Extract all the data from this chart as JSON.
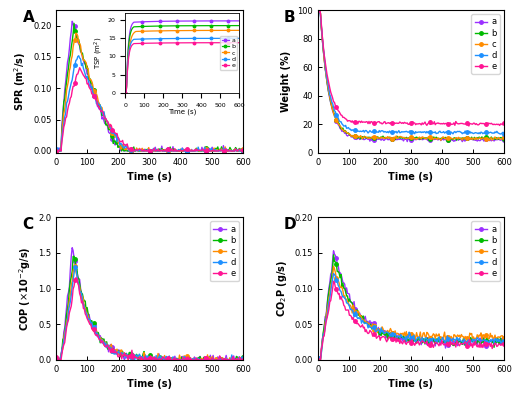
{
  "colors": {
    "a": "#9B30FF",
    "b": "#00BB00",
    "c": "#FF8C00",
    "d": "#1E90FF",
    "e": "#FF1493"
  },
  "labels": [
    "a",
    "b",
    "c",
    "d",
    "e"
  ],
  "panel_labels": [
    "A",
    "B",
    "C",
    "D"
  ],
  "xlabel": "Time (s)",
  "ylabel_A": "SPR (m$^2$/s)",
  "ylabel_B": "Weight (%)",
  "ylabel_C": "COP ($\\times$10$^{-2}$g/s)",
  "ylabel_D": "CO$_2$P (g/s)",
  "inset_ylabel": "TSP (m$^2$)",
  "inset_xlabel": "Time (s)",
  "ylim_A": [
    0,
    0.22
  ],
  "ylim_B": [
    0,
    100
  ],
  "ylim_C": [
    0,
    2.0
  ],
  "ylim_D": [
    0,
    0.2
  ],
  "xlim": [
    0,
    600
  ],
  "marker": "o",
  "markersize": 2.5,
  "linewidth": 1.0,
  "spr_peaks": {
    "a": 0.21,
    "b": 0.2,
    "c": 0.188,
    "d": 0.155,
    "e": 0.135
  },
  "spr_t_peak": {
    "a": 52,
    "b": 58,
    "c": 64,
    "d": 70,
    "e": 76
  },
  "spr_t_end": {
    "a": 215,
    "b": 220,
    "c": 230,
    "d": 240,
    "e": 250
  },
  "weight_finals": {
    "a": 9,
    "b": 10,
    "c": 10,
    "d": 14,
    "e": 20
  },
  "cop_peaks": {
    "a": 1.58,
    "b": 1.5,
    "c": 1.36,
    "d": 1.3,
    "e": 1.18
  },
  "cop_t_peak": {
    "a": 52,
    "b": 56,
    "c": 58,
    "d": 60,
    "e": 62
  },
  "co2p_peaks": {
    "a": 0.155,
    "b": 0.145,
    "c": 0.128,
    "d": 0.123,
    "e": 0.11
  },
  "co2p_start": {
    "a": 0.015,
    "b": 0.015,
    "c": 0.015,
    "d": 0.015,
    "e": 0.015
  },
  "co2p_finals": {
    "a": 0.025,
    "b": 0.025,
    "c": 0.032,
    "d": 0.028,
    "e": 0.022
  },
  "tsp_finals": {
    "a": 19.8,
    "b": 18.5,
    "c": 17.2,
    "d": 15.0,
    "e": 13.8
  },
  "tsp_t_rise": {
    "a": 45,
    "b": 45,
    "c": 55,
    "d": 45,
    "e": 45
  }
}
